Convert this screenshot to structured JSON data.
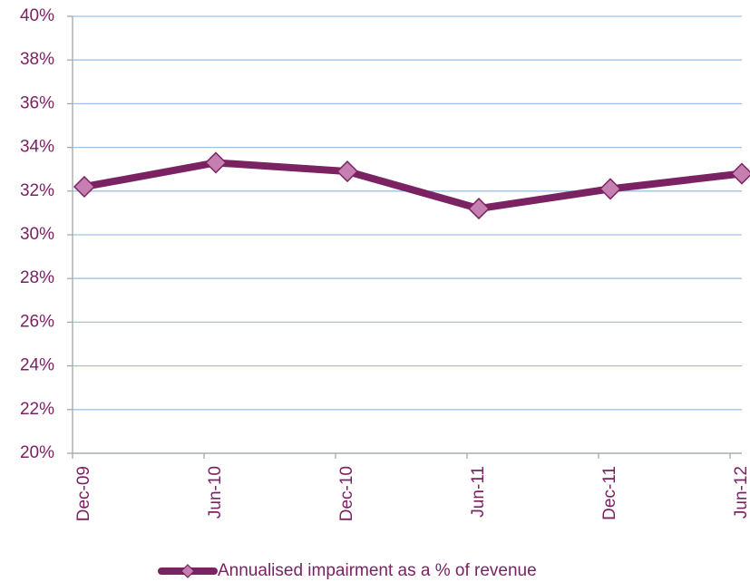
{
  "chart_data": {
    "type": "line",
    "categories": [
      "Dec-09",
      "Jun-10",
      "Dec-10",
      "Jun-11",
      "Dec-11",
      "Jun-12"
    ],
    "series": [
      {
        "name": "Annualised impairment as a % of revenue",
        "color": "#7b2262",
        "marker_color": "#c57fb0",
        "values": [
          32.2,
          33.3,
          32.9,
          31.2,
          32.1,
          32.8
        ]
      }
    ],
    "ylim": [
      20,
      40
    ],
    "yticks": [
      {
        "value": 20,
        "label": "20%"
      },
      {
        "value": 22,
        "label": "22%"
      },
      {
        "value": 24,
        "label": "24%"
      },
      {
        "value": 26,
        "label": "26%"
      },
      {
        "value": 28,
        "label": "28%"
      },
      {
        "value": 30,
        "label": "30%"
      },
      {
        "value": 32,
        "label": "32%"
      },
      {
        "value": 34,
        "label": "34%"
      },
      {
        "value": 36,
        "label": "36%"
      },
      {
        "value": 38,
        "label": "38%"
      },
      {
        "value": 40,
        "label": "40%"
      }
    ],
    "grid": true,
    "legend": "bottom"
  }
}
